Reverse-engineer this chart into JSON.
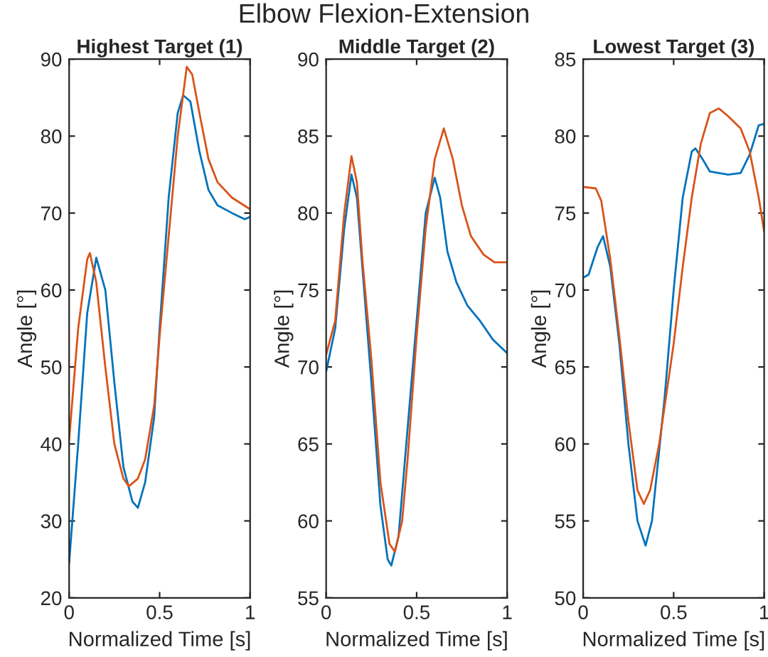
{
  "chart_data": [
    {
      "type": "line",
      "title": "Highest Target (1)",
      "xlabel": "Normalized Time [s]",
      "ylabel": "Angle [°]",
      "annotations": [
        "Elbow Flexion-Extension"
      ],
      "xlim": [
        0,
        1
      ],
      "xticks": [
        0,
        0.5,
        1
      ],
      "ylim": [
        20,
        90
      ],
      "yticks": [
        20,
        30,
        40,
        50,
        60,
        70,
        80,
        90
      ],
      "grid": false,
      "legend": false,
      "series": [
        {
          "color": "#0072bd",
          "x": [
            0,
            0.05,
            0.1,
            0.15,
            0.2,
            0.25,
            0.3,
            0.35,
            0.38,
            0.42,
            0.47,
            0.5,
            0.55,
            0.6,
            0.63,
            0.67,
            0.72,
            0.77,
            0.82,
            0.9,
            0.97,
            1
          ],
          "values": [
            24.5,
            40,
            57,
            64.2,
            60,
            48,
            37,
            32.5,
            31.7,
            35,
            43.5,
            55,
            72,
            83,
            85.3,
            84.5,
            78,
            73,
            71,
            70,
            69.2,
            69.5
          ]
        },
        {
          "color": "#d95319",
          "x": [
            0,
            0.05,
            0.1,
            0.115,
            0.15,
            0.2,
            0.25,
            0.3,
            0.33,
            0.38,
            0.42,
            0.47,
            0.5,
            0.55,
            0.6,
            0.65,
            0.68,
            0.72,
            0.77,
            0.82,
            0.9,
            1
          ],
          "values": [
            40.5,
            55,
            64,
            64.8,
            61,
            50,
            40,
            35.5,
            34.5,
            35.5,
            38,
            45,
            54,
            67,
            80,
            89,
            88,
            83,
            77,
            74,
            72,
            70.5
          ]
        }
      ]
    },
    {
      "type": "line",
      "title": "Middle Target (2)",
      "xlabel": "Normalized Time [s]",
      "ylabel": "Angle [°]",
      "xlim": [
        0,
        1
      ],
      "xticks": [
        0,
        0.5,
        1
      ],
      "ylim": [
        55,
        90
      ],
      "yticks": [
        55,
        60,
        65,
        70,
        75,
        80,
        85,
        90
      ],
      "grid": false,
      "legend": false,
      "series": [
        {
          "color": "#0072bd",
          "x": [
            0,
            0.05,
            0.1,
            0.14,
            0.17,
            0.2,
            0.25,
            0.3,
            0.34,
            0.36,
            0.4,
            0.45,
            0.5,
            0.55,
            0.6,
            0.63,
            0.67,
            0.72,
            0.78,
            0.85,
            0.92,
            1
          ],
          "values": [
            69.7,
            72.5,
            79,
            82.5,
            81,
            76.5,
            69,
            61,
            57.5,
            57.1,
            59,
            66,
            73,
            80,
            82.3,
            81,
            77.5,
            75.5,
            74,
            73,
            71.8,
            70.9
          ]
        },
        {
          "color": "#d95319",
          "x": [
            0,
            0.05,
            0.1,
            0.14,
            0.17,
            0.2,
            0.25,
            0.3,
            0.35,
            0.38,
            0.42,
            0.45,
            0.5,
            0.55,
            0.6,
            0.65,
            0.7,
            0.75,
            0.8,
            0.87,
            0.93,
            1
          ],
          "values": [
            70.8,
            73,
            80,
            83.7,
            82,
            77,
            70.5,
            62.5,
            58.5,
            58,
            60,
            64,
            72,
            79,
            83.5,
            85.5,
            83.5,
            80.5,
            78.5,
            77.3,
            76.8,
            76.8
          ]
        }
      ]
    },
    {
      "type": "line",
      "title": "Lowest Target (3)",
      "xlabel": "Normalized Time [s]",
      "ylabel": "Angle [°]",
      "xlim": [
        0,
        1
      ],
      "xticks": [
        0,
        0.5,
        1
      ],
      "ylim": [
        50,
        85
      ],
      "yticks": [
        50,
        55,
        60,
        65,
        70,
        75,
        80,
        85
      ],
      "grid": false,
      "legend": false,
      "series": [
        {
          "color": "#0072bd",
          "x": [
            0,
            0.03,
            0.08,
            0.11,
            0.15,
            0.2,
            0.25,
            0.3,
            0.345,
            0.38,
            0.45,
            0.5,
            0.55,
            0.6,
            0.62,
            0.66,
            0.7,
            0.8,
            0.87,
            0.92,
            0.97,
            1
          ],
          "values": [
            70.8,
            71,
            72.8,
            73.5,
            71.5,
            66.5,
            60,
            55,
            53.4,
            55,
            63,
            70,
            76,
            79,
            79.2,
            78.5,
            77.7,
            77.5,
            77.6,
            78.8,
            80.7,
            80.8
          ]
        },
        {
          "color": "#d95319",
          "x": [
            0,
            0.07,
            0.1,
            0.15,
            0.2,
            0.25,
            0.3,
            0.335,
            0.37,
            0.42,
            0.5,
            0.55,
            0.6,
            0.65,
            0.7,
            0.75,
            0.8,
            0.87,
            0.92,
            0.97,
            1
          ],
          "values": [
            76.7,
            76.6,
            75.8,
            72,
            67,
            61.5,
            57,
            56.1,
            57,
            60,
            66.5,
            71.5,
            76,
            79.5,
            81.5,
            81.8,
            81.3,
            80.5,
            79,
            76,
            73.8
          ]
        }
      ]
    }
  ]
}
